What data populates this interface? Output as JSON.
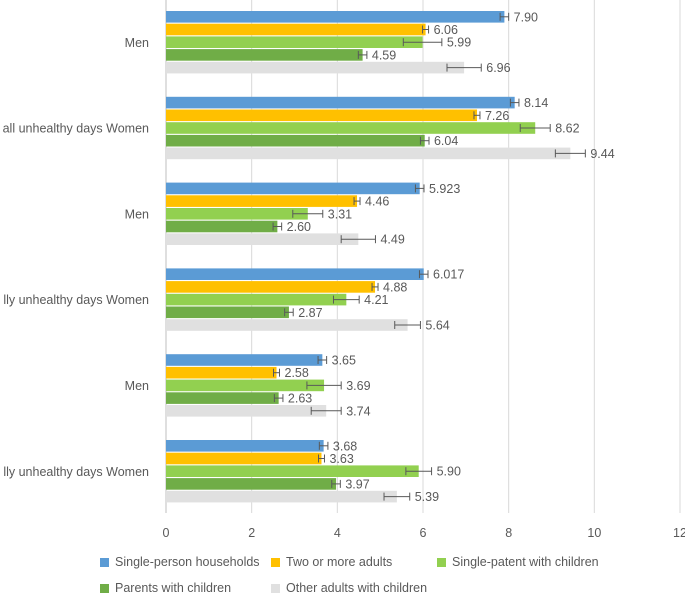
{
  "chart_data": {
    "type": "bar",
    "orientation": "horizontal",
    "categories": [
      "Men",
      "all unhealthy days Women",
      "Men",
      "lly unhealthy days Women",
      "Men",
      "lly unhealthy days Women"
    ],
    "series": [
      {
        "name": "Single-person households",
        "color": "#5b9bd5",
        "values": [
          7.9,
          8.14,
          5.923,
          6.017,
          3.65,
          3.68
        ],
        "labels": [
          "7.90",
          "8.14",
          "5.923",
          "6.017",
          "3.65",
          "3.68"
        ],
        "err": [
          0.1,
          0.1,
          0.1,
          0.1,
          0.1,
          0.1
        ]
      },
      {
        "name": "Two or more adults",
        "color": "#ffc000",
        "values": [
          6.06,
          7.26,
          4.46,
          4.88,
          2.58,
          3.63
        ],
        "labels": [
          "6.06",
          "7.26",
          "4.46",
          "4.88",
          "2.58",
          "3.63"
        ],
        "err": [
          0.07,
          0.07,
          0.07,
          0.07,
          0.07,
          0.07
        ]
      },
      {
        "name": "Single-patent with children",
        "color": "#92d050",
        "values": [
          5.99,
          8.62,
          3.31,
          4.21,
          3.69,
          5.9
        ],
        "labels": [
          "5.99",
          "8.62",
          "3.31",
          "4.21",
          "3.69",
          "5.90"
        ],
        "err": [
          0.45,
          0.35,
          0.35,
          0.3,
          0.4,
          0.3
        ]
      },
      {
        "name": "Parents with children",
        "color": "#70ad47",
        "values": [
          4.59,
          6.04,
          2.6,
          2.87,
          2.63,
          3.97
        ],
        "labels": [
          "4.59",
          "6.04",
          "2.60",
          "2.87",
          "2.63",
          "3.97"
        ],
        "err": [
          0.1,
          0.1,
          0.1,
          0.1,
          0.1,
          0.1
        ]
      },
      {
        "name": "Other adults with children",
        "color": "#e0e0e0",
        "values": [
          6.96,
          9.44,
          4.49,
          5.64,
          3.74,
          5.39
        ],
        "labels": [
          "6.96",
          "9.44",
          "4.49",
          "5.64",
          "3.74",
          "5.39"
        ],
        "err": [
          0.4,
          0.35,
          0.4,
          0.3,
          0.35,
          0.3
        ]
      }
    ],
    "xticks": [
      "0",
      "2",
      "4",
      "6",
      "8",
      "10",
      "12"
    ],
    "xlim": [
      0,
      12
    ],
    "xlabel": "",
    "ylabel": "",
    "title": "",
    "grid": true,
    "legend_position": "bottom"
  }
}
